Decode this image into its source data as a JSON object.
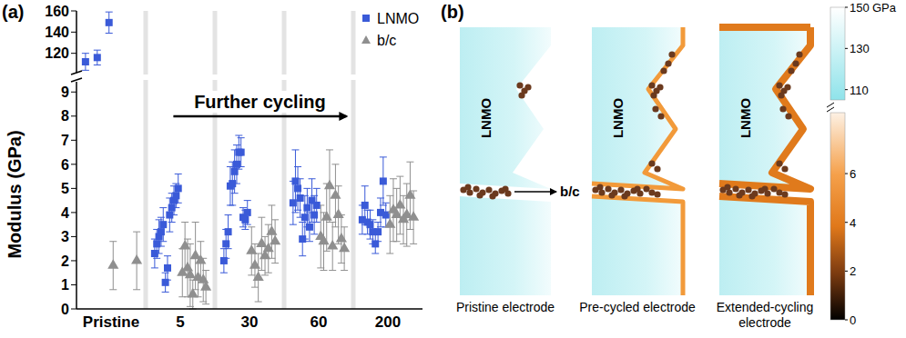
{
  "chart_data": {
    "type": "scatter",
    "panel_label": "(a)",
    "y_label": "Modulus (GPa)",
    "categories": [
      "Pristine",
      "5",
      "30",
      "60",
      "200"
    ],
    "ylim": [
      0,
      9.5
    ],
    "yticks": [
      0,
      1,
      2,
      3,
      4,
      5,
      6,
      7,
      8,
      9
    ],
    "y_break": {
      "ylim": [
        100,
        160
      ],
      "yticks": [
        120,
        140,
        160
      ]
    },
    "legend": "upper right",
    "annotation": "Further cycling",
    "series": [
      {
        "name": "LNMO",
        "color": "#3a5ad8",
        "marker": "square",
        "values": [
          [
            112,
            116,
            149
          ],
          [
            2.3,
            2.7,
            3.0,
            3.2,
            3.5,
            1.1,
            1.7,
            3.9,
            4.2,
            4.5,
            4.7,
            5.0
          ],
          [
            2.0,
            2.7,
            3.2,
            5.1,
            5.2,
            5.7,
            6.0,
            6.5,
            6.5,
            3.8,
            3.7,
            4.0
          ],
          [
            4.4,
            5.3,
            5.0,
            4.6,
            2.9,
            3.8,
            4.2,
            3.4,
            4.5,
            3.9,
            4.3
          ],
          [
            3.7,
            4.3,
            3.6,
            3.5,
            3.2,
            2.7,
            3.2,
            4.0,
            5.3,
            3.9
          ]
        ],
        "errors": [
          [
            8,
            7,
            10
          ],
          [
            0.6,
            0.6,
            0.7,
            0.6,
            0.7,
            0.4,
            0.5,
            0.7,
            0.6,
            0.6,
            0.5,
            0.6
          ],
          [
            0.5,
            0.6,
            0.7,
            0.8,
            0.9,
            0.9,
            0.8,
            0.7,
            0.6,
            0.4,
            0.4,
            0.5
          ],
          [
            0.9,
            1.3,
            0.9,
            0.8,
            0.7,
            0.9,
            0.8,
            0.6,
            0.9,
            0.8,
            0.7
          ],
          [
            0.6,
            0.8,
            0.5,
            0.6,
            0.5,
            0.4,
            0.4,
            0.6,
            1.0,
            0.5
          ]
        ]
      },
      {
        "name": "b/c",
        "color": "#8f8f8f",
        "marker": "triangle",
        "values": [
          [
            1.8,
            2.0
          ],
          [
            1.5,
            2.6,
            1.7,
            1.4,
            0.6,
            2.2,
            1.3,
            2.0,
            1.2,
            0.9
          ],
          [
            2.4,
            1.8,
            1.3,
            2.7,
            2.2,
            2.5,
            3.2,
            2.8
          ],
          [
            3.0,
            2.8,
            3.8,
            5.1,
            2.6,
            4.7,
            3.9,
            2.9,
            2.5
          ],
          [
            3.5,
            4.1,
            3.9,
            4.3,
            3.7,
            3.9,
            4.7,
            3.8
          ]
        ],
        "errors": [
          [
            1.0,
            1.2
          ],
          [
            1.0,
            1.0,
            1.2,
            1.3,
            0.6,
            1.4,
            0.8,
            0.8,
            0.9,
            0.7
          ],
          [
            1.0,
            0.9,
            1.0,
            1.1,
            0.8,
            1.0,
            1.1,
            0.9
          ],
          [
            1.3,
            1.2,
            1.4,
            1.5,
            1.0,
            1.3,
            1.2,
            1.0,
            0.9
          ],
          [
            1.2,
            1.3,
            1.1,
            1.2,
            1.0,
            1.3,
            1.4,
            1.1
          ]
        ]
      }
    ]
  },
  "diagram": {
    "panel_label": "(b)",
    "particle_label": "LNMO",
    "interphase_label": "b/c",
    "electrodes": [
      "Pristine electrode",
      "Pre-cycled electrode",
      "Extended-cycling electrode"
    ],
    "colorbar": {
      "label": "GPa",
      "upper": {
        "range": [
          105,
          150
        ],
        "ticks": [
          110,
          130,
          150
        ]
      },
      "lower": {
        "range": [
          0,
          8.5
        ],
        "ticks": [
          0,
          2,
          4,
          6
        ]
      }
    }
  }
}
